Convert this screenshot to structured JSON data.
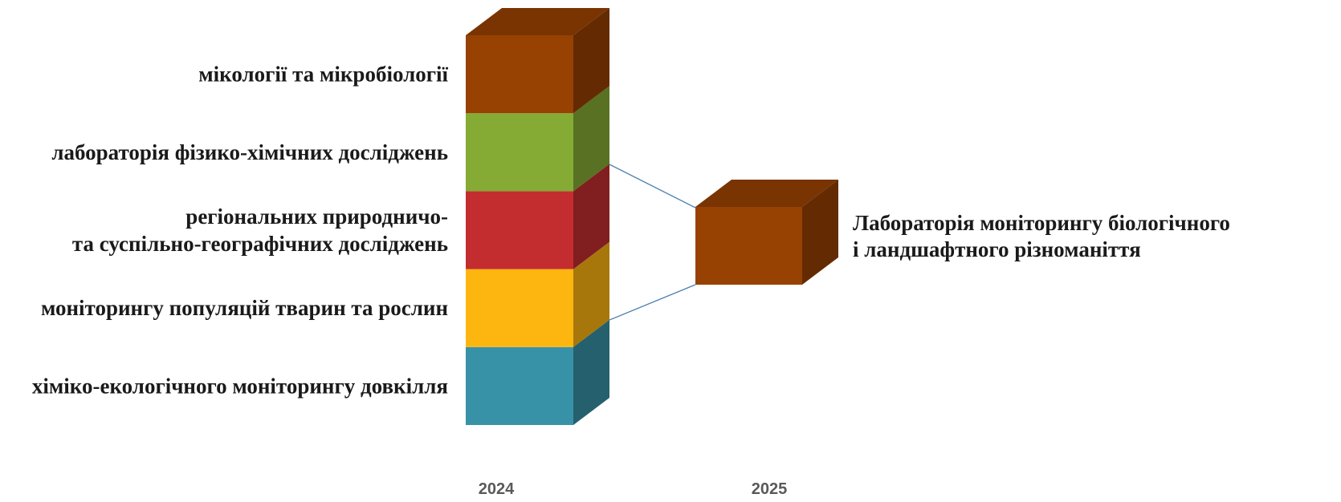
{
  "segments_2024": [
    {
      "label_lines": [
        "мікології та мікробіології"
      ],
      "color": "#974103"
    },
    {
      "label_lines": [
        "лабораторія фізико-хімічних досліджень"
      ],
      "color": "#85AB34"
    },
    {
      "label_lines": [
        "регіональних природничо-",
        "та суспільно-географічних досліджень"
      ],
      "color": "#C32D2F"
    },
    {
      "label_lines": [
        "моніторингу популяцій тварин та рослин"
      ],
      "color": "#FDB510"
    },
    {
      "label_lines": [
        "хіміко-екологічного моніторингу довкілля"
      ],
      "color": "#3892A7"
    }
  ],
  "block_2025": {
    "label_lines": [
      "Лабораторія моніторингу біологічного",
      "і ландшафтного різноманіття"
    ],
    "color": "#974103"
  },
  "years": [
    "2024",
    "2025"
  ],
  "connector_color": "#4A7FAE"
}
